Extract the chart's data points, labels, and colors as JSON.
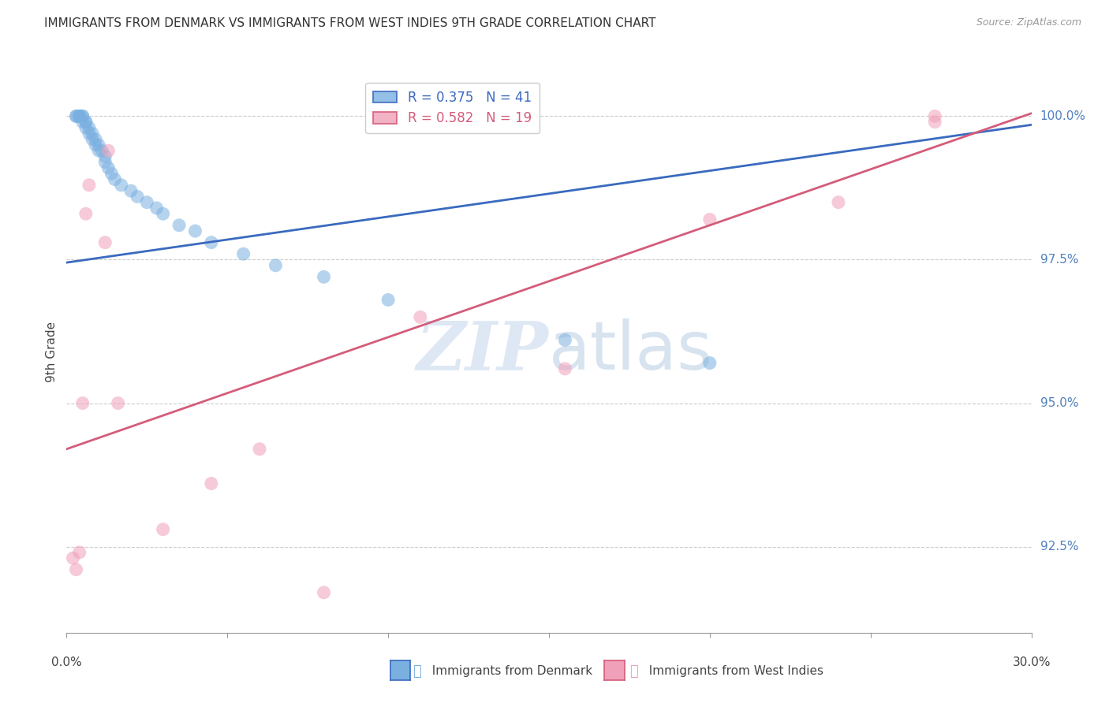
{
  "title": "IMMIGRANTS FROM DENMARK VS IMMIGRANTS FROM WEST INDIES 9TH GRADE CORRELATION CHART",
  "source": "Source: ZipAtlas.com",
  "ylabel_label": "9th Grade",
  "legend_blue_r": "R = 0.375",
  "legend_blue_n": "N = 41",
  "legend_pink_r": "R = 0.582",
  "legend_pink_n": "N = 19",
  "watermark_zip": "ZIP",
  "watermark_atlas": "atlas",
  "blue_color": "#7ab0e0",
  "pink_color": "#f0a0b8",
  "blue_line_color": "#3a6abf",
  "pink_line_color": "#d45c7a",
  "background_color": "#ffffff",
  "grid_color": "#cccccc",
  "right_label_color": "#5080bb",
  "xlim": [
    0.0,
    0.3
  ],
  "ylim": [
    0.91,
    1.008
  ],
  "ytick_vals": [
    0.925,
    0.95,
    0.975,
    1.0
  ],
  "ytick_labels": [
    "92.5%",
    "95.0%",
    "97.5%",
    "100.0%"
  ],
  "xtick_vals": [
    0.0,
    0.05,
    0.1,
    0.15,
    0.2,
    0.25,
    0.3
  ],
  "blue_scatter_x": [
    0.003,
    0.003,
    0.004,
    0.004,
    0.004,
    0.004,
    0.005,
    0.005,
    0.005,
    0.006,
    0.006,
    0.006,
    0.007,
    0.007,
    0.008,
    0.008,
    0.009,
    0.009,
    0.01,
    0.01,
    0.011,
    0.012,
    0.012,
    0.013,
    0.014,
    0.015,
    0.017,
    0.02,
    0.022,
    0.025,
    0.028,
    0.03,
    0.035,
    0.04,
    0.045,
    0.055,
    0.065,
    0.08,
    0.1,
    0.155,
    0.2
  ],
  "blue_scatter_y": [
    1.0,
    1.0,
    1.0,
    1.0,
    1.0,
    1.0,
    1.0,
    1.0,
    0.999,
    0.999,
    0.999,
    0.998,
    0.998,
    0.997,
    0.997,
    0.996,
    0.996,
    0.995,
    0.995,
    0.994,
    0.994,
    0.993,
    0.992,
    0.991,
    0.99,
    0.989,
    0.988,
    0.987,
    0.986,
    0.985,
    0.984,
    0.983,
    0.981,
    0.98,
    0.978,
    0.976,
    0.974,
    0.972,
    0.968,
    0.961,
    0.957
  ],
  "pink_scatter_x": [
    0.002,
    0.003,
    0.004,
    0.005,
    0.006,
    0.007,
    0.012,
    0.013,
    0.016,
    0.03,
    0.045,
    0.06,
    0.08,
    0.11,
    0.155,
    0.2,
    0.24,
    0.27,
    0.27
  ],
  "pink_scatter_y": [
    0.923,
    0.921,
    0.924,
    0.95,
    0.983,
    0.988,
    0.978,
    0.994,
    0.95,
    0.928,
    0.936,
    0.942,
    0.917,
    0.965,
    0.956,
    0.982,
    0.985,
    1.0,
    0.999
  ],
  "blue_line_x": [
    0.0,
    0.3
  ],
  "blue_line_y": [
    0.9745,
    0.9985
  ],
  "pink_line_x": [
    0.0,
    0.3
  ],
  "pink_line_y": [
    0.942,
    1.0005
  ]
}
